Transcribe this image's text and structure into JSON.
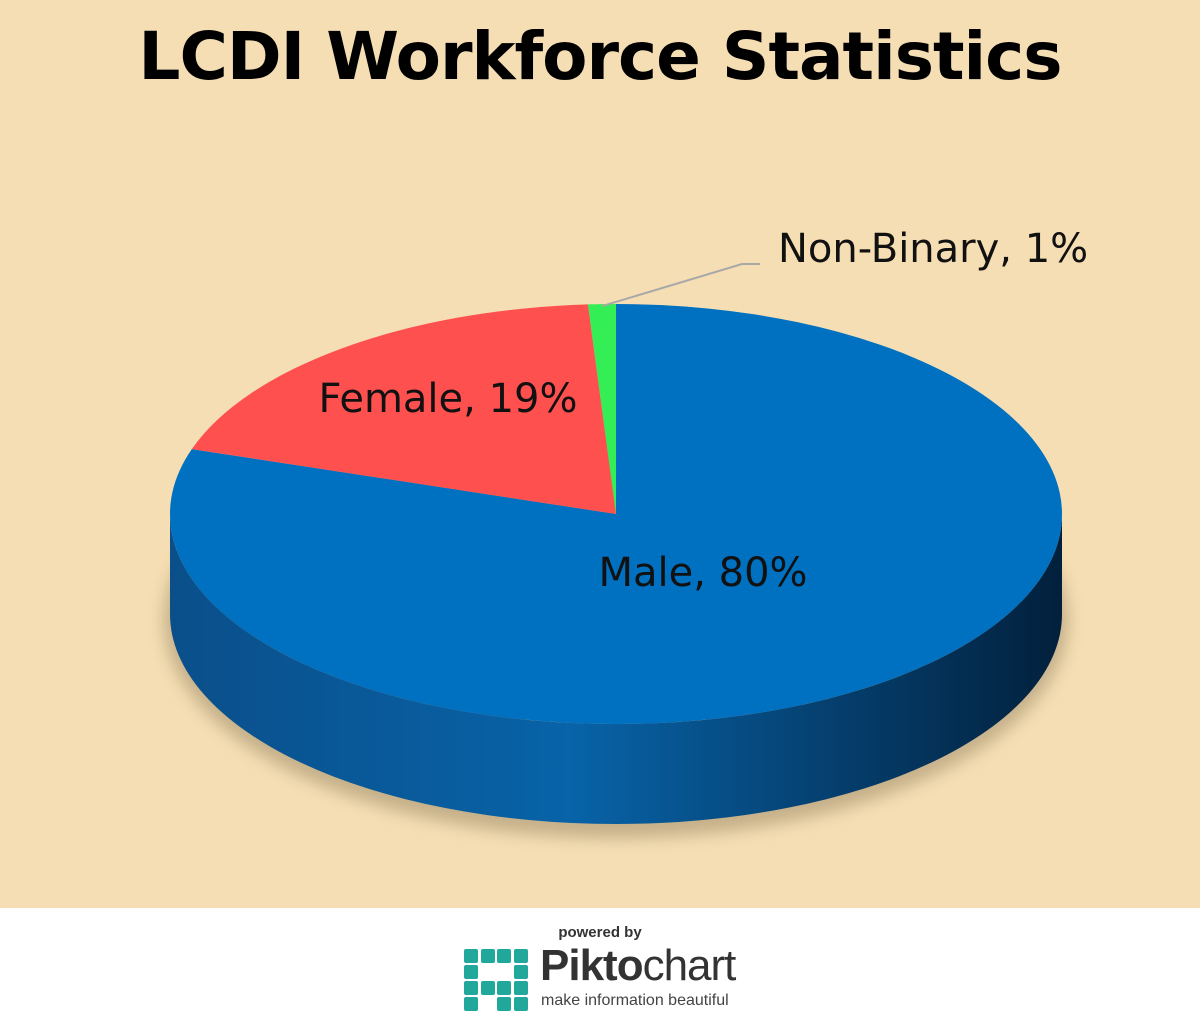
{
  "chart_data": {
    "type": "pie",
    "title": "LCDI Workforce Statistics",
    "slices": [
      {
        "label": "Male",
        "value": 80,
        "display": "Male, 80%",
        "color": "#0070c0"
      },
      {
        "label": "Female",
        "value": 19,
        "display": "Female, 19%",
        "color": "#ff5050"
      },
      {
        "label": "Non-Binary",
        "value": 1,
        "display": "Non-Binary, 1%",
        "color": "#33ee55"
      }
    ],
    "style": "3d",
    "background": "#f5deb3"
  },
  "footer": {
    "powered_by": "powered by",
    "brand_bold": "Pikto",
    "brand_light": "chart",
    "tagline": "make information beautiful",
    "logo_color": "#21a89a"
  }
}
